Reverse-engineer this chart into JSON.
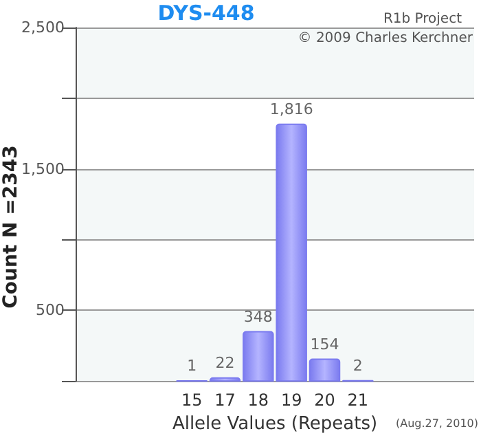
{
  "chart_data": {
    "type": "bar",
    "title": "DYS-448",
    "xlabel": "Allele Values (Repeats)",
    "ylabel": "Count N =2343",
    "categories": [
      null,
      null,
      null,
      "15",
      "17",
      "18",
      "19",
      "20",
      "21",
      null,
      null,
      null
    ],
    "values": [
      null,
      null,
      null,
      1,
      22,
      348,
      1816,
      154,
      2,
      null,
      null,
      null
    ],
    "value_labels": [
      null,
      null,
      null,
      "1",
      "22",
      "348",
      "1,816",
      "154",
      "2",
      null,
      null,
      null
    ],
    "color": "#7b7bef",
    "ylim": [
      0,
      2500
    ],
    "yticks": [
      {
        "value": 0,
        "label": null
      },
      500,
      {
        "value": 1000,
        "label": null
      },
      {
        "value": 1500,
        "label": "1,500"
      },
      {
        "value": 2000,
        "label": null
      },
      {
        "value": 2500,
        "label": "2,500"
      }
    ],
    "grid": "y",
    "annotations": [
      "R1b Project",
      "© 2009 Charles Kerchner",
      "(Aug.27, 2010)"
    ]
  }
}
